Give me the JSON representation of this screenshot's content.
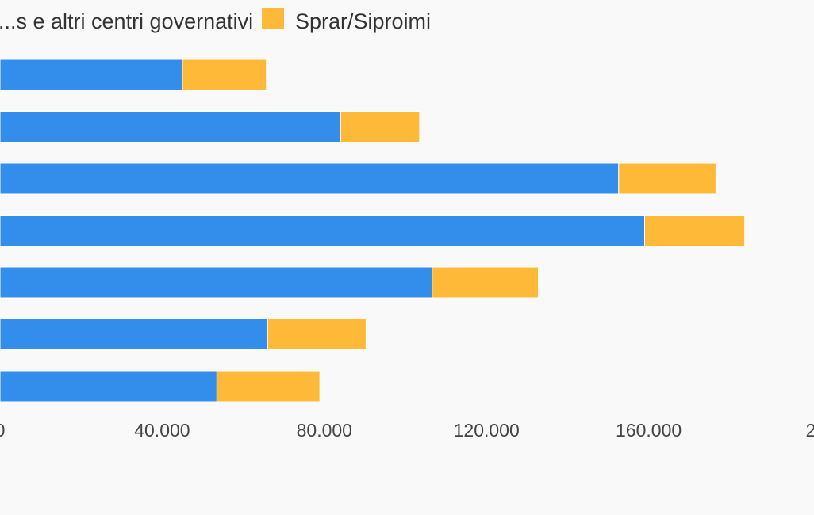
{
  "chart_data": {
    "type": "bar",
    "orientation": "horizontal",
    "stacked": true,
    "categories": [
      "",
      "",
      "",
      "",
      "",
      "",
      ""
    ],
    "series": [
      {
        "name": "...s e altri centri governativi",
        "color": "#338deb",
        "values": [
          45000,
          84000,
          152600,
          159000,
          106600,
          66000,
          53500
        ]
      },
      {
        "name": "Sprar/Siproimi",
        "color": "#ffb938",
        "values": [
          20700,
          19500,
          24000,
          24700,
          26200,
          24300,
          25400
        ]
      }
    ],
    "x_ticks": [
      "0",
      "40.000",
      "80.000",
      "120.000",
      "160.000",
      "2"
    ],
    "xlim": [
      0,
      200000
    ],
    "grid": false,
    "legend_position": "top",
    "title": "",
    "xlabel": "",
    "ylabel": ""
  }
}
